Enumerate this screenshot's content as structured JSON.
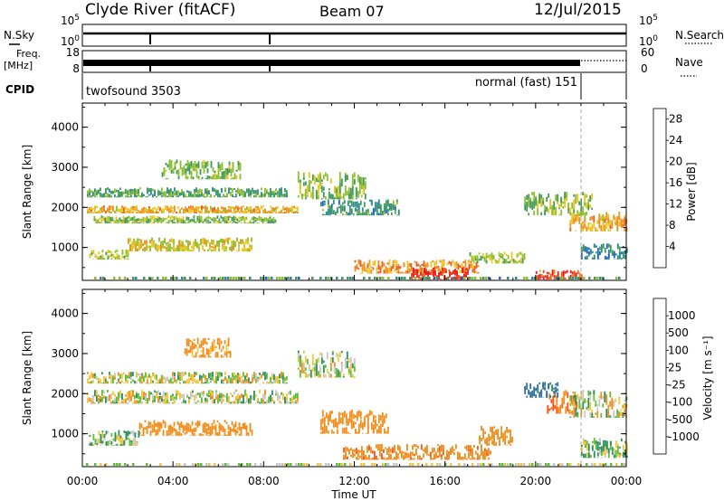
{
  "header": {
    "station": "Clyde River (fitACF)",
    "beam": "Beam 07",
    "date": "12/Jul/2015"
  },
  "aux_panels": {
    "nsky_label": "N.Sky",
    "nsky_ticks": [
      "10^5",
      "10^0"
    ],
    "nsearch_label": "N.Search",
    "nsearch_ticks": [
      "10^5",
      "10^0"
    ],
    "freq_label": "Freq.",
    "freq_unit": "[MHz]",
    "freq_ticks": [
      "18",
      "8"
    ],
    "nave_label": "Nave",
    "nave_ticks": [
      "60",
      "0"
    ],
    "cpid_label": "CPID",
    "cpid_entries": [
      {
        "text": "twofsound 3503"
      },
      {
        "text": "normal (fast) 151"
      }
    ]
  },
  "chart_data": [
    {
      "type": "heatmap",
      "title": "",
      "xlabel": "Time UT",
      "ylabel": "Slant Range [km]",
      "x_ticks": [
        "00:00",
        "04:00",
        "08:00",
        "12:00",
        "16:00",
        "20:00",
        "00:00"
      ],
      "x_range_hours": [
        0,
        24
      ],
      "y_ticks": [
        "1000",
        "2000",
        "3000",
        "4000"
      ],
      "ylim": [
        180,
        4600
      ],
      "colorbar": {
        "label": "Power [dB]",
        "ticks": [
          "4",
          "8",
          "12",
          "16",
          "20",
          "24",
          "28"
        ],
        "range": [
          0,
          30
        ],
        "colors": [
          "#1f1fe6",
          "#1f5fc0",
          "#2f8a8a",
          "#3f9a5a",
          "#8fbf2f",
          "#e8c81f",
          "#f0901f",
          "#f05a1f",
          "#e61e1e"
        ]
      },
      "regions": [
        {
          "t0": 0.2,
          "t1": 9.0,
          "r0": 2250,
          "r1": 2500,
          "v": 12
        },
        {
          "t0": 0.2,
          "t1": 9.5,
          "r0": 1850,
          "r1": 2050,
          "v": 20
        },
        {
          "t0": 0.5,
          "t1": 8.5,
          "r0": 1600,
          "r1": 1800,
          "v": 14
        },
        {
          "t0": 2.0,
          "t1": 7.5,
          "r0": 900,
          "r1": 1250,
          "v": 18
        },
        {
          "t0": 0.3,
          "t1": 2.0,
          "r0": 700,
          "r1": 950,
          "v": 16
        },
        {
          "t0": 3.5,
          "t1": 7.0,
          "r0": 2700,
          "r1": 3200,
          "v": 14
        },
        {
          "t0": 9.5,
          "t1": 12.5,
          "r0": 2200,
          "r1": 2900,
          "v": 14
        },
        {
          "t0": 10.5,
          "t1": 14.0,
          "r0": 1800,
          "r1": 2200,
          "v": 10
        },
        {
          "t0": 12.0,
          "t1": 17.5,
          "r0": 350,
          "r1": 700,
          "v": 22
        },
        {
          "t0": 14.5,
          "t1": 17.0,
          "r0": 200,
          "r1": 500,
          "v": 28
        },
        {
          "t0": 17.0,
          "t1": 19.5,
          "r0": 600,
          "r1": 900,
          "v": 16
        },
        {
          "t0": 19.5,
          "t1": 22.5,
          "r0": 1800,
          "r1": 2400,
          "v": 14
        },
        {
          "t0": 21.5,
          "t1": 24.0,
          "r0": 1400,
          "r1": 1900,
          "v": 20
        },
        {
          "t0": 20.0,
          "t1": 22.0,
          "r0": 200,
          "r1": 450,
          "v": 26
        },
        {
          "t0": 22.0,
          "t1": 24.0,
          "r0": 700,
          "r1": 1100,
          "v": 8
        }
      ]
    },
    {
      "type": "heatmap",
      "title": "",
      "xlabel": "Time UT",
      "ylabel": "Slant Range [km]",
      "x_ticks": [
        "00:00",
        "04:00",
        "08:00",
        "12:00",
        "16:00",
        "20:00",
        "00:00"
      ],
      "x_range_hours": [
        0,
        24
      ],
      "y_ticks": [
        "1000",
        "2000",
        "3000",
        "4000"
      ],
      "ylim": [
        180,
        4600
      ],
      "colorbar": {
        "label": "Velocity [m s⁻¹]",
        "ticks": [
          "1000",
          "500",
          "100",
          "25",
          "-25",
          "-100",
          "-500",
          "-1000"
        ],
        "colors": [
          "#1f3fbf",
          "#2f6f9f",
          "#2f8f5f",
          "#5fbf2f",
          "#c8c8c8",
          "#f0c83f",
          "#f08f1f",
          "#f05a1f",
          "#e61e1e"
        ]
      },
      "regions": [
        {
          "t0": 0.2,
          "t1": 9.0,
          "r0": 2250,
          "r1": 2550,
          "v": 0
        },
        {
          "t0": 0.2,
          "t1": 9.5,
          "r0": 1750,
          "r1": 2100,
          "v": 0
        },
        {
          "t0": 2.5,
          "t1": 7.5,
          "r0": 950,
          "r1": 1350,
          "v": -300
        },
        {
          "t0": 4.5,
          "t1": 6.5,
          "r0": 2900,
          "r1": 3400,
          "v": -200
        },
        {
          "t0": 0.3,
          "t1": 2.5,
          "r0": 700,
          "r1": 1100,
          "v": 80
        },
        {
          "t0": 9.5,
          "t1": 12.0,
          "r0": 2400,
          "r1": 3100,
          "v": 0
        },
        {
          "t0": 10.5,
          "t1": 13.5,
          "r0": 1000,
          "r1": 1600,
          "v": -300
        },
        {
          "t0": 11.5,
          "t1": 18.0,
          "r0": 350,
          "r1": 750,
          "v": -400
        },
        {
          "t0": 17.5,
          "t1": 19.0,
          "r0": 700,
          "r1": 1200,
          "v": -300
        },
        {
          "t0": 20.5,
          "t1": 21.8,
          "r0": 1500,
          "r1": 2100,
          "v": -500
        },
        {
          "t0": 21.5,
          "t1": 24.0,
          "r0": 1400,
          "r1": 2100,
          "v": 0
        },
        {
          "t0": 22.0,
          "t1": 24.0,
          "r0": 400,
          "r1": 900,
          "v": 80
        },
        {
          "t0": 19.5,
          "t1": 21.0,
          "r0": 1900,
          "r1": 2300,
          "v": 600
        }
      ]
    }
  ]
}
